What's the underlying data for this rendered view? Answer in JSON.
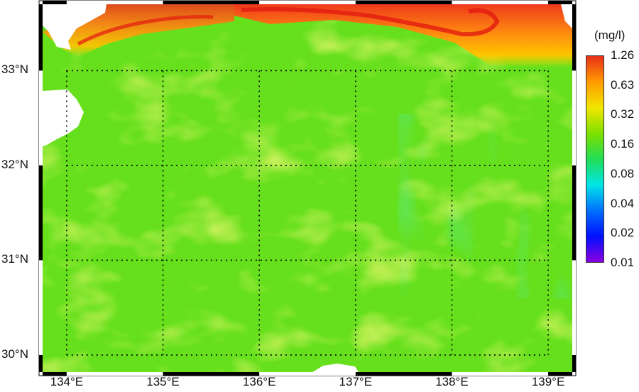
{
  "map": {
    "extent": {
      "lon_min": 133.75,
      "lon_max": 139.25,
      "lat_min": 29.82,
      "lat_max": 33.7
    },
    "gridlines": {
      "lons": [
        134,
        135,
        136,
        137,
        138,
        139
      ],
      "lats": [
        30,
        31,
        32,
        33
      ],
      "style": "dotted"
    },
    "lat_labels": [
      {
        "lat": 33,
        "text": "33°N"
      },
      {
        "lat": 32,
        "text": "32°N"
      },
      {
        "lat": 31,
        "text": "31°N"
      },
      {
        "lat": 30,
        "text": "30°N"
      }
    ],
    "lon_labels": [
      {
        "lon": 134,
        "text": "134°E"
      },
      {
        "lon": 135,
        "text": "135°E"
      },
      {
        "lon": 136,
        "text": "136°E"
      },
      {
        "lon": 137,
        "text": "137°E"
      },
      {
        "lon": 138,
        "text": "138°E"
      },
      {
        "lon": 139,
        "text": "139°E"
      }
    ],
    "land_color": "#ffffff",
    "ocean_base_color": "#66e01c",
    "border": "black-and-white alternating frame"
  },
  "colorbar": {
    "unit": "(mg/l)",
    "scale": "log",
    "ticks": [
      "1.26",
      "0.63",
      "0.32",
      "0.16",
      "0.08",
      "0.04",
      "0.02",
      "0.01"
    ],
    "colors": [
      "#e8301a",
      "#ff9a00",
      "#f2e600",
      "#7ee000",
      "#22dd55",
      "#00e5e5",
      "#0070ff",
      "#0010ff",
      "#8a00e0"
    ]
  }
}
